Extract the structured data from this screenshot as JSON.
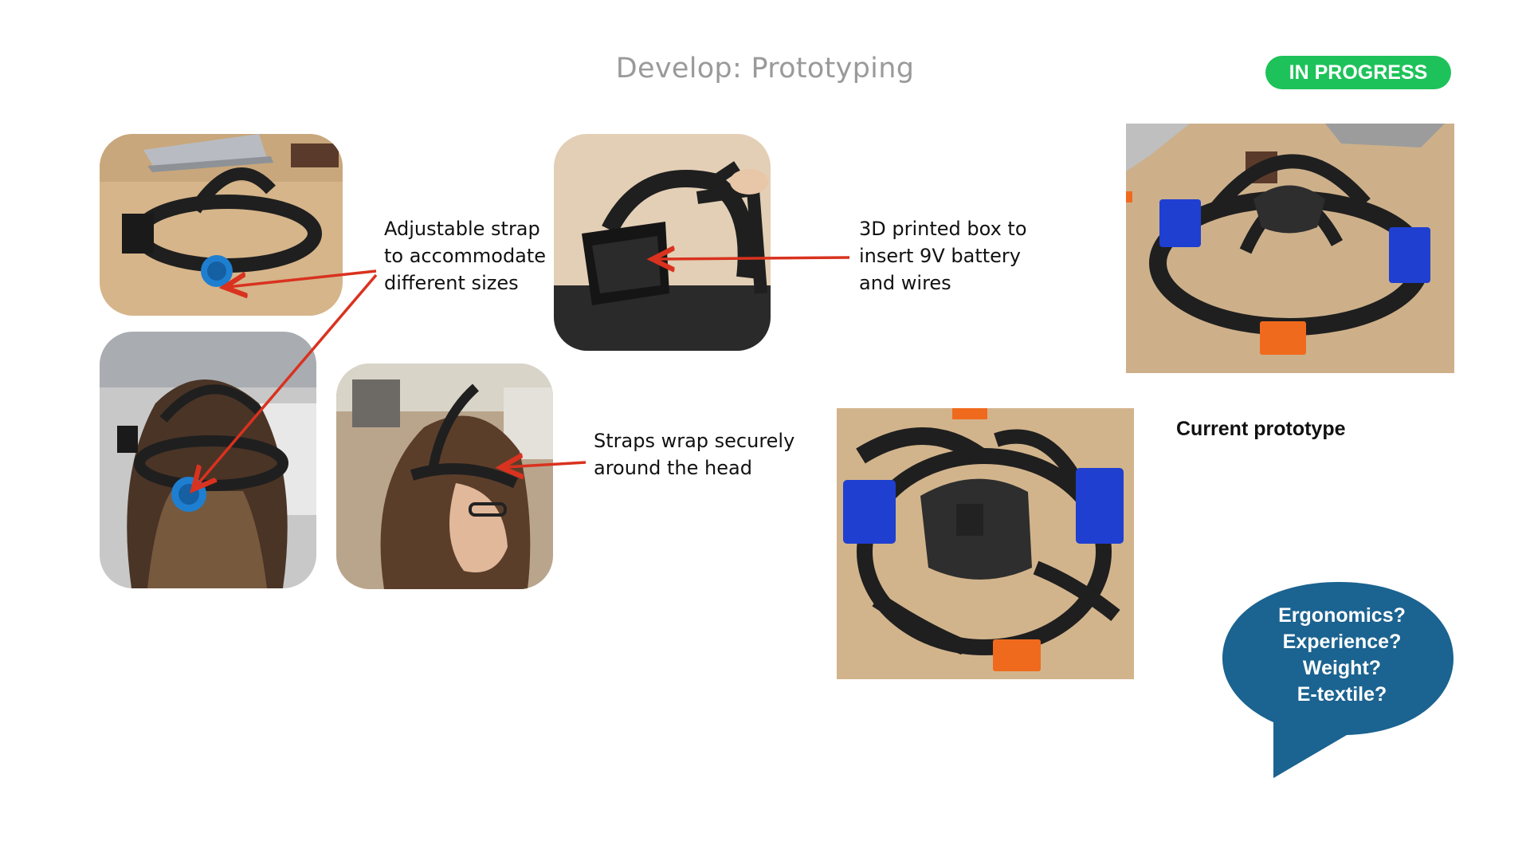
{
  "slide": {
    "title": "Develop: Prototyping",
    "status_badge": "IN PROGRESS",
    "captions": {
      "strap": [
        "Adjustable strap",
        "to accommodate",
        "different sizes"
      ],
      "box": [
        "3D printed box to",
        "insert 9V battery",
        "and wires"
      ],
      "wrap": [
        "Straps wrap securely",
        "around the head"
      ]
    },
    "current_label": "Current prototype",
    "questions": [
      "Ergonomics?",
      "Experience?",
      "Weight?",
      "E-textile?"
    ]
  },
  "colors": {
    "title": "#9a9a9a",
    "badge": "#1ec25a",
    "arrow": "#d9321f",
    "bubble": "#1b6390",
    "dial": "#1e7fd0",
    "table": "#d2b48c",
    "strap": "#1f1f1f",
    "blue_box": "#1f3fd1",
    "orange_box": "#f06a1d"
  },
  "icons": [
    "arrow-right-icon",
    "speech-bubble-icon"
  ]
}
